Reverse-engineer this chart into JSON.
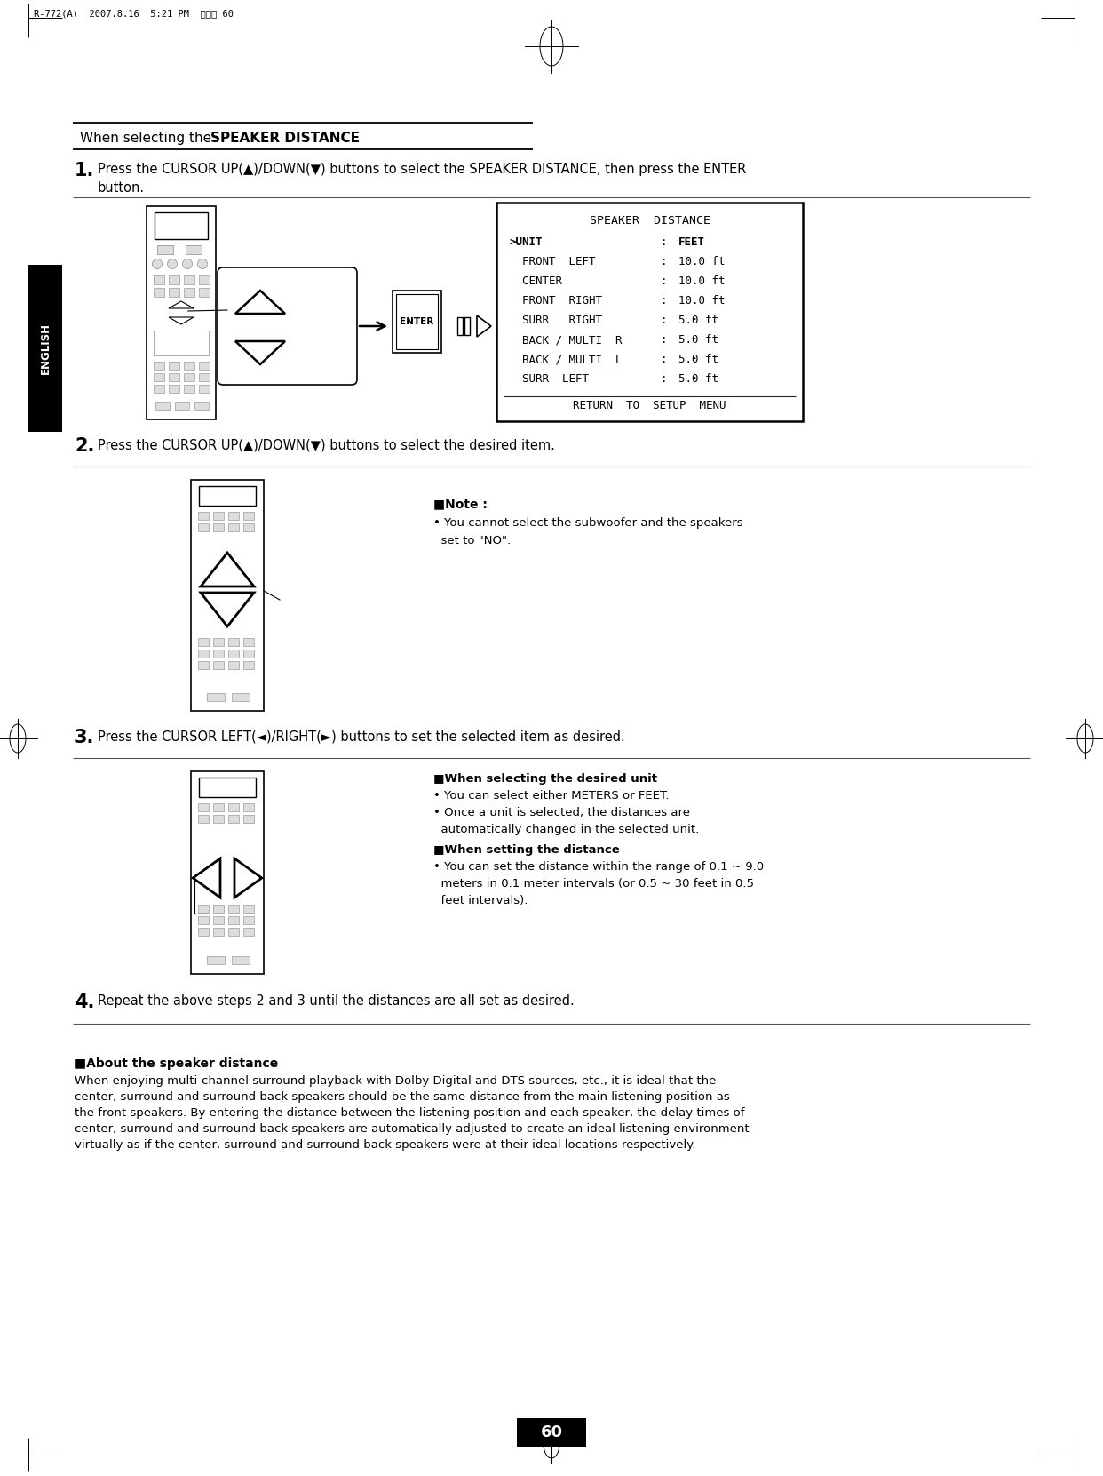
{
  "bg_color": "#ffffff",
  "header_text": "R-772(A)  2007.8.16  5:21 PM  페이지 60",
  "english_tab_text": "ENGLISH",
  "section_title_normal": "When selecting the ",
  "section_title_bold": "SPEAKER DISTANCE",
  "step1_num": "1.",
  "step1_line1": "Press the CURSOR UP(▲)/DOWN(▼) buttons to select the SPEAKER DISTANCE, then press the ENTER",
  "step1_line2": "button.",
  "step2_num": "2.",
  "step2_text": "Press the CURSOR UP(▲)/DOWN(▼) buttons to select the desired item.",
  "step3_num": "3.",
  "step3_text": "Press the CURSOR LEFT(◄)/RIGHT(►) buttons to set the selected item as desired.",
  "step4_num": "4.",
  "step4_text": "Repeat the above steps 2 and 3 until the distances are all set as desired.",
  "note_header": "■Note :",
  "note_line1": "• You cannot select the subwoofer and the speakers",
  "note_line2": "  set to \"NO\".",
  "when_unit_header": "■When selecting the desired unit",
  "when_unit_b1": "• You can select either METERS or FEET.",
  "when_unit_b2a": "• Once a unit is selected, the distances are",
  "when_unit_b2b": "  automatically changed in the selected unit.",
  "when_dist_header": "■When setting the distance",
  "when_dist_b1a": "• You can set the distance within the range of 0.1 ~ 9.0",
  "when_dist_b1b": "  meters in 0.1 meter intervals (or 0.5 ~ 30 feet in 0.5",
  "when_dist_b1c": "  feet intervals).",
  "about_header": "■About the speaker distance",
  "about_lines": [
    "When enjoying multi-channel surround playback with Dolby Digital and DTS sources, etc., it is ideal that the",
    "center, surround and surround back speakers should be the same distance from the main listening position as",
    "the front speakers. By entering the distance between the listening position and each speaker, the delay times of",
    "center, surround and surround back speakers are automatically adjusted to create an ideal listening environment",
    "virtually as if the center, surround and surround back speakers were at their ideal locations respectively."
  ],
  "page_num": "60",
  "menu_title": "SPEAKER  DISTANCE",
  "menu_rows": [
    [
      ">UNIT",
      ":",
      "FEET"
    ],
    [
      "  FRONT  LEFT",
      ":",
      "10.0 ft"
    ],
    [
      "  CENTER",
      ":",
      "10.0 ft"
    ],
    [
      "  FRONT  RIGHT",
      ":",
      "10.0 ft"
    ],
    [
      "  SURR   RIGHT",
      ":",
      "5.0 ft"
    ],
    [
      "  BACK / MULTI  R",
      ":",
      "5.0 ft"
    ],
    [
      "  BACK / MULTI  L",
      ":",
      "5.0 ft"
    ],
    [
      "  SURR  LEFT",
      ":",
      "5.0 ft"
    ]
  ],
  "menu_footer": "RETURN  TO  SETUP  MENU"
}
